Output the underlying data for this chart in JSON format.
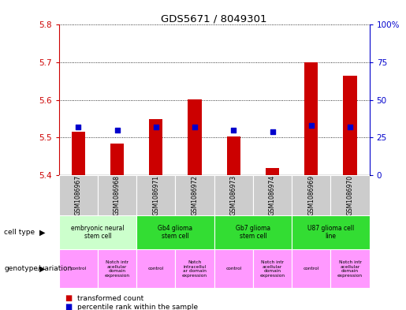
{
  "title": "GDS5671 / 8049301",
  "samples": [
    "GSM1086967",
    "GSM1086968",
    "GSM1086971",
    "GSM1086972",
    "GSM1086973",
    "GSM1086974",
    "GSM1086969",
    "GSM1086970"
  ],
  "red_values": [
    5.515,
    5.483,
    5.549,
    5.601,
    5.502,
    5.418,
    5.701,
    5.665
  ],
  "blue_values": [
    32,
    30,
    32,
    32,
    30,
    29,
    33,
    32
  ],
  "ylim_left": [
    5.4,
    5.8
  ],
  "ylim_right": [
    0,
    100
  ],
  "yticks_left": [
    5.4,
    5.5,
    5.6,
    5.7,
    5.8
  ],
  "yticks_right": [
    0,
    25,
    50,
    75,
    100
  ],
  "cell_type_groups": [
    {
      "label": "embryonic neural\nstem cell",
      "start": 0,
      "end": 2,
      "color": "#ccffcc"
    },
    {
      "label": "Gb4 glioma\nstem cell",
      "start": 2,
      "end": 4,
      "color": "#33dd33"
    },
    {
      "label": "Gb7 glioma\nstem cell",
      "start": 4,
      "end": 6,
      "color": "#33dd33"
    },
    {
      "label": "U87 glioma cell\nline",
      "start": 6,
      "end": 8,
      "color": "#33dd33"
    }
  ],
  "genotype_groups": [
    {
      "label": "control",
      "start": 0,
      "end": 1
    },
    {
      "label": "Notch intr\nacellular\ndomain\nexpression",
      "start": 1,
      "end": 2
    },
    {
      "label": "control",
      "start": 2,
      "end": 3
    },
    {
      "label": "Notch\nintracellul\nar domain\nexpression",
      "start": 3,
      "end": 4
    },
    {
      "label": "control",
      "start": 4,
      "end": 5
    },
    {
      "label": "Notch intr\nacellular\ndomain\nexpression",
      "start": 5,
      "end": 6
    },
    {
      "label": "control",
      "start": 6,
      "end": 7
    },
    {
      "label": "Notch intr\nacellular\ndomain\nexpression",
      "start": 7,
      "end": 8
    }
  ],
  "geno_color": "#ff99ff",
  "bar_color": "#cc0000",
  "dot_color": "#0000cc",
  "left_axis_color": "#cc0000",
  "right_axis_color": "#0000cc",
  "bar_width": 0.35,
  "dot_size": 18,
  "sample_bg_color": "#cccccc"
}
